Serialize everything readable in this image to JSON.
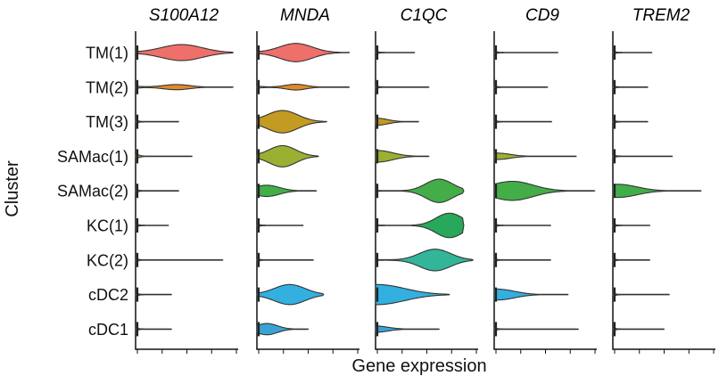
{
  "chart_data": {
    "type": "violin",
    "title": "",
    "xlabel": "Gene expression",
    "ylabel": "Cluster",
    "categories": [
      "TM(1)",
      "TM(2)",
      "TM(3)",
      "SAMac(1)",
      "SAMac(2)",
      "KC(1)",
      "KC(2)",
      "cDC2",
      "cDC1"
    ],
    "colors": {
      "TM(1)": "#ef6f6a",
      "TM(2)": "#e08a2c",
      "TM(3)": "#c39a22",
      "SAMac(1)": "#9ab033",
      "SAMac(2)": "#43ad48",
      "KC(1)": "#27a85a",
      "KC(2)": "#33b59a",
      "cDC2": "#33afe0",
      "cDC1": "#3aa3d6"
    },
    "outline_color": "#333333",
    "xlim": [
      0,
      1
    ],
    "panels": [
      {
        "gene": "S100A12",
        "values": [
          {
            "cluster": "TM(1)",
            "peak": 0.45,
            "width": 0.56,
            "spread": 0.2,
            "max": 0.95
          },
          {
            "cluster": "TM(2)",
            "peak": 0.4,
            "width": 0.18,
            "spread": 0.13,
            "max": 0.95,
            "base_tail": true
          },
          {
            "cluster": "TM(3)",
            "peak": 0.0,
            "width": 0.1,
            "spread": 0.02,
            "max": 0.42
          },
          {
            "cluster": "SAMac(1)",
            "peak": 0.0,
            "width": 0.12,
            "spread": 0.03,
            "max": 0.55
          },
          {
            "cluster": "SAMac(2)",
            "peak": 0.0,
            "width": 0.08,
            "spread": 0.02,
            "max": 0.42
          },
          {
            "cluster": "KC(1)",
            "peak": 0.0,
            "width": 0.08,
            "spread": 0.02,
            "max": 0.32
          },
          {
            "cluster": "KC(2)",
            "peak": 0.0,
            "width": 0.08,
            "spread": 0.02,
            "max": 0.85
          },
          {
            "cluster": "cDC2",
            "peak": 0.0,
            "width": 0.1,
            "spread": 0.02,
            "max": 0.35
          },
          {
            "cluster": "cDC1",
            "peak": 0.0,
            "width": 0.08,
            "spread": 0.02,
            "max": 0.35
          }
        ]
      },
      {
        "gene": "MNDA",
        "values": [
          {
            "cluster": "TM(1)",
            "peak": 0.38,
            "width": 0.64,
            "spread": 0.16,
            "max": 0.9
          },
          {
            "cluster": "TM(2)",
            "peak": 0.38,
            "width": 0.2,
            "spread": 0.1,
            "max": 0.9,
            "base_tail": true
          },
          {
            "cluster": "TM(3)",
            "peak": 0.25,
            "width": 0.78,
            "spread": 0.15,
            "max": 0.68
          },
          {
            "cluster": "SAMac(1)",
            "peak": 0.25,
            "width": 0.74,
            "spread": 0.13,
            "max": 0.6
          },
          {
            "cluster": "SAMac(2)",
            "peak": 0.1,
            "width": 0.38,
            "spread": 0.12,
            "max": 0.58
          },
          {
            "cluster": "KC(1)",
            "peak": 0.0,
            "width": 0.08,
            "spread": 0.02,
            "max": 0.45
          },
          {
            "cluster": "KC(2)",
            "peak": 0.0,
            "width": 0.08,
            "spread": 0.02,
            "max": 0.55
          },
          {
            "cluster": "cDC2",
            "peak": 0.32,
            "width": 0.7,
            "spread": 0.15,
            "max": 0.65
          },
          {
            "cluster": "cDC1",
            "peak": 0.1,
            "width": 0.38,
            "spread": 0.1,
            "max": 0.5
          }
        ]
      },
      {
        "gene": "C1QC",
        "values": [
          {
            "cluster": "TM(1)",
            "peak": 0.0,
            "width": 0.08,
            "spread": 0.02,
            "max": 0.38
          },
          {
            "cluster": "TM(2)",
            "peak": 0.0,
            "width": 0.08,
            "spread": 0.02,
            "max": 0.52
          },
          {
            "cluster": "TM(3)",
            "peak": 0.02,
            "width": 0.22,
            "spread": 0.1,
            "max": 0.42
          },
          {
            "cluster": "SAMac(1)",
            "peak": 0.03,
            "width": 0.38,
            "spread": 0.14,
            "max": 0.52
          },
          {
            "cluster": "SAMac(2)",
            "peak": 0.62,
            "width": 0.82,
            "spread": 0.13,
            "max": 0.86
          },
          {
            "cluster": "KC(1)",
            "peak": 0.72,
            "width": 0.86,
            "spread": 0.13,
            "max": 0.86
          },
          {
            "cluster": "KC(2)",
            "peak": 0.58,
            "width": 0.76,
            "spread": 0.15,
            "max": 0.95
          },
          {
            "cluster": "cDC2",
            "peak": 0.03,
            "width": 0.68,
            "spread": 0.26,
            "max": 0.72
          },
          {
            "cluster": "cDC1",
            "peak": 0.0,
            "width": 0.2,
            "spread": 0.12,
            "max": 0.62
          }
        ]
      },
      {
        "gene": "CD9",
        "values": [
          {
            "cluster": "TM(1)",
            "peak": 0.0,
            "width": 0.08,
            "spread": 0.02,
            "max": 0.62
          },
          {
            "cluster": "TM(2)",
            "peak": 0.0,
            "width": 0.08,
            "spread": 0.02,
            "max": 0.52
          },
          {
            "cluster": "TM(3)",
            "peak": 0.0,
            "width": 0.08,
            "spread": 0.02,
            "max": 0.56
          },
          {
            "cluster": "SAMac(1)",
            "peak": 0.04,
            "width": 0.2,
            "spread": 0.12,
            "max": 0.8
          },
          {
            "cluster": "SAMac(2)",
            "peak": 0.18,
            "width": 0.66,
            "spread": 0.2,
            "max": 0.98
          },
          {
            "cluster": "KC(1)",
            "peak": 0.0,
            "width": 0.08,
            "spread": 0.02,
            "max": 0.55
          },
          {
            "cluster": "KC(2)",
            "peak": 0.0,
            "width": 0.08,
            "spread": 0.02,
            "max": 0.55
          },
          {
            "cluster": "cDC2",
            "peak": 0.04,
            "width": 0.36,
            "spread": 0.16,
            "max": 0.72
          },
          {
            "cluster": "cDC1",
            "peak": 0.0,
            "width": 0.08,
            "spread": 0.02,
            "max": 0.82
          }
        ]
      },
      {
        "gene": "TREM2",
        "values": [
          {
            "cluster": "TM(1)",
            "peak": 0.0,
            "width": 0.08,
            "spread": 0.02,
            "max": 0.38
          },
          {
            "cluster": "TM(2)",
            "peak": 0.0,
            "width": 0.08,
            "spread": 0.02,
            "max": 0.34
          },
          {
            "cluster": "TM(3)",
            "peak": 0.0,
            "width": 0.08,
            "spread": 0.02,
            "max": 0.34
          },
          {
            "cluster": "SAMac(1)",
            "peak": 0.0,
            "width": 0.08,
            "spread": 0.02,
            "max": 0.58
          },
          {
            "cluster": "SAMac(2)",
            "peak": 0.06,
            "width": 0.44,
            "spread": 0.18,
            "max": 0.86
          },
          {
            "cluster": "KC(1)",
            "peak": 0.0,
            "width": 0.08,
            "spread": 0.02,
            "max": 0.36
          },
          {
            "cluster": "KC(2)",
            "peak": 0.0,
            "width": 0.08,
            "spread": 0.02,
            "max": 0.36
          },
          {
            "cluster": "cDC2",
            "peak": 0.0,
            "width": 0.08,
            "spread": 0.02,
            "max": 0.55
          },
          {
            "cluster": "cDC1",
            "peak": 0.0,
            "width": 0.08,
            "spread": 0.02,
            "max": 0.5
          }
        ]
      }
    ]
  }
}
